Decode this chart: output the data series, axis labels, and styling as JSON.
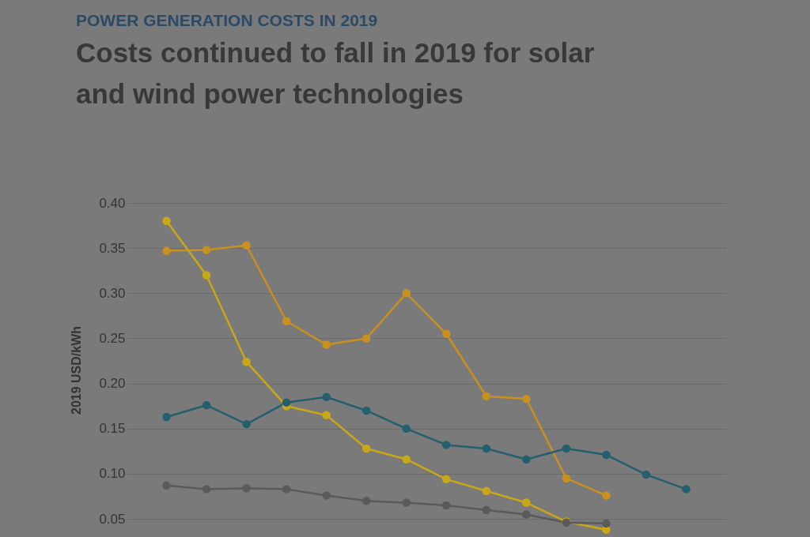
{
  "chart_data": {
    "type": "line",
    "subtitle": "POWER GENERATION COSTS IN 2019",
    "title": "Costs continued to fall in 2019 for solar and wind power technologies",
    "ylabel": "2019 USD/kWh",
    "categories": [
      null,
      null,
      null,
      null,
      null,
      null,
      null,
      null,
      null,
      null,
      null,
      null,
      null,
      null
    ],
    "series": [
      {
        "color": "#c8901e",
        "values": [
          0.347,
          0.348,
          0.353,
          0.269,
          0.243,
          0.25,
          0.3,
          0.255,
          0.186,
          0.183,
          0.095,
          0.076,
          null,
          null
        ]
      },
      {
        "color": "#c9a818",
        "values": [
          0.38,
          0.32,
          0.224,
          0.175,
          0.165,
          0.128,
          0.116,
          0.094,
          0.081,
          0.068,
          0.047,
          0.038,
          null,
          null
        ]
      },
      {
        "color": "#245f6e",
        "values": [
          0.163,
          0.176,
          0.155,
          0.179,
          0.185,
          0.17,
          0.15,
          0.132,
          0.128,
          0.116,
          0.128,
          0.121,
          0.099,
          0.083
        ]
      },
      {
        "color": "#5a5a5a",
        "values": [
          0.087,
          0.083,
          0.084,
          0.083,
          0.076,
          0.07,
          0.068,
          0.065,
          0.06,
          0.055,
          0.046,
          0.045,
          null,
          null
        ]
      }
    ],
    "ylim": [
      0.03,
      0.4
    ],
    "yticks": [
      0.05,
      {
        "value": 0.1,
        "label": "0.10"
      },
      0.15,
      {
        "value": 0.2,
        "label": "0.20"
      },
      0.25,
      {
        "value": 0.3,
        "label": "0.30"
      },
      0.35,
      {
        "value": 0.4,
        "label": "0.40"
      }
    ],
    "grid": "y",
    "marker": "circle",
    "tick_labels": "y"
  }
}
